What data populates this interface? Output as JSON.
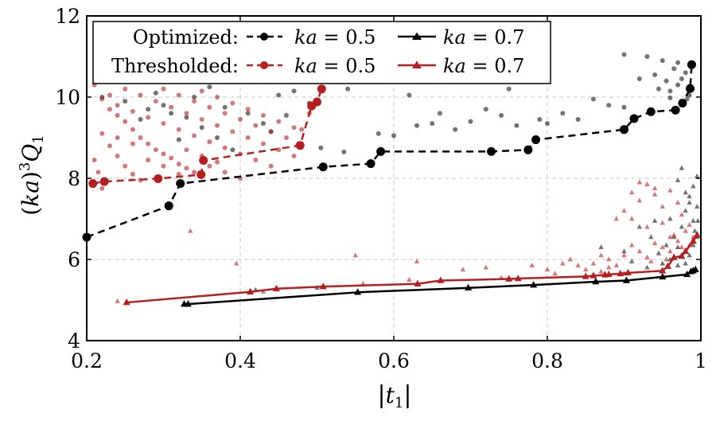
{
  "chart_data": {
    "type": "scatter",
    "xlabel": "|t1|",
    "ylabel": "(ka)3Q1",
    "xlim": [
      0.2,
      1.0
    ],
    "ylim": [
      4,
      12
    ],
    "xticks": [
      "0.2",
      "0.4",
      "0.6",
      "0.8",
      "1"
    ],
    "yticks": [
      "4",
      "6",
      "8",
      "10",
      "12"
    ],
    "grid": true,
    "legend": {
      "placement": "top-left",
      "rows": [
        {
          "label": "Optimized:",
          "entries": [
            "ka = 0.5",
            "ka = 0.7"
          ]
        },
        {
          "label": "Thresholded:",
          "entries": [
            "ka = 0.5",
            "ka = 0.7"
          ]
        }
      ]
    },
    "colors": {
      "optimized": "#000000",
      "thresholded": "#b41f1f"
    },
    "series": [
      {
        "name": "Optimized: ka = 0.5",
        "style": "dashed-line-circle",
        "color": "#000000",
        "front": [
          [
            0.2,
            6.55
          ],
          [
            0.307,
            7.32
          ],
          [
            0.322,
            7.87
          ],
          [
            0.508,
            8.28
          ],
          [
            0.57,
            8.36
          ],
          [
            0.583,
            8.66
          ],
          [
            0.727,
            8.66
          ],
          [
            0.775,
            8.7
          ],
          [
            0.785,
            8.95
          ],
          [
            0.9,
            9.2
          ],
          [
            0.913,
            9.47
          ],
          [
            0.935,
            9.64
          ],
          [
            0.967,
            9.68
          ],
          [
            0.976,
            9.85
          ],
          [
            0.986,
            10.21
          ],
          [
            0.988,
            10.8
          ]
        ],
        "scatter": [
          [
            0.36,
            10.25
          ],
          [
            0.34,
            10.0
          ],
          [
            0.3,
            9.8
          ],
          [
            0.28,
            9.7
          ],
          [
            0.45,
            10.05
          ],
          [
            0.47,
            10.15
          ],
          [
            0.38,
            9.75
          ],
          [
            0.33,
            9.5
          ],
          [
            0.27,
            9.45
          ],
          [
            0.43,
            9.35
          ],
          [
            0.49,
            9.85
          ],
          [
            0.37,
            9.0
          ],
          [
            0.31,
            9.6
          ],
          [
            0.22,
            10.0
          ],
          [
            0.25,
            9.9
          ],
          [
            0.41,
            9.6
          ],
          [
            0.29,
            10.1
          ],
          [
            0.35,
            9.25
          ],
          [
            0.32,
            8.95
          ],
          [
            0.46,
            9.55
          ],
          [
            0.44,
            9.15
          ],
          [
            0.39,
            8.7
          ],
          [
            0.505,
            8.75
          ],
          [
            0.535,
            8.65
          ],
          [
            0.6,
            9.05
          ],
          [
            0.54,
            10.2
          ],
          [
            0.68,
            9.2
          ],
          [
            0.65,
            9.35
          ],
          [
            0.62,
            10.05
          ],
          [
            0.66,
            9.6
          ],
          [
            0.7,
            9.4
          ],
          [
            0.72,
            9.7
          ],
          [
            0.74,
            9.55
          ],
          [
            0.76,
            9.3
          ],
          [
            0.79,
            9.45
          ],
          [
            0.82,
            9.6
          ],
          [
            0.84,
            9.45
          ],
          [
            0.86,
            9.95
          ],
          [
            0.88,
            9.8
          ],
          [
            0.9,
            9.75
          ],
          [
            0.92,
            10.45
          ],
          [
            0.94,
            10.55
          ],
          [
            0.955,
            10.4
          ],
          [
            0.96,
            10.15
          ],
          [
            0.965,
            10.7
          ],
          [
            0.97,
            10.3
          ],
          [
            0.975,
            10.45
          ],
          [
            0.98,
            10.6
          ],
          [
            0.982,
            9.95
          ],
          [
            0.985,
            10.05
          ],
          [
            0.9,
            11.05
          ],
          [
            0.93,
            11.0
          ],
          [
            0.95,
            10.9
          ],
          [
            0.97,
            10.85
          ],
          [
            0.96,
            9.98
          ],
          [
            0.945,
            10.2
          ],
          [
            0.22,
            11.15
          ],
          [
            0.75,
            10.2
          ],
          [
            0.8,
            9.35
          ],
          [
            0.58,
            9.1
          ],
          [
            0.63,
            9.3
          ]
        ]
      },
      {
        "name": "Optimized: ka = 0.7",
        "style": "solid-line-triangle",
        "color": "#000000",
        "front": [
          [
            0.327,
            4.9
          ],
          [
            0.332,
            4.9
          ],
          [
            0.553,
            5.19
          ],
          [
            0.697,
            5.3
          ],
          [
            0.782,
            5.37
          ],
          [
            0.863,
            5.45
          ],
          [
            0.903,
            5.48
          ],
          [
            0.95,
            5.57
          ],
          [
            0.982,
            5.63
          ],
          [
            0.987,
            5.7
          ],
          [
            0.99,
            5.72
          ],
          [
            0.993,
            5.75
          ]
        ],
        "scatter": [
          [
            0.42,
            5.25
          ],
          [
            0.5,
            5.3
          ],
          [
            0.85,
            5.6
          ],
          [
            0.9,
            5.65
          ],
          [
            0.93,
            5.8
          ],
          [
            0.96,
            6.0
          ],
          [
            0.97,
            6.3
          ],
          [
            0.975,
            6.8
          ],
          [
            0.98,
            7.2
          ],
          [
            0.985,
            7.55
          ],
          [
            0.99,
            7.8
          ],
          [
            0.995,
            8.05
          ],
          [
            0.97,
            7.95
          ],
          [
            0.975,
            8.25
          ],
          [
            0.98,
            7.65
          ],
          [
            0.985,
            7.4
          ],
          [
            0.99,
            6.95
          ],
          [
            0.995,
            6.55
          ],
          [
            0.965,
            6.55
          ],
          [
            0.96,
            7.0
          ],
          [
            0.955,
            6.35
          ],
          [
            0.945,
            6.15
          ],
          [
            0.985,
            6.1
          ],
          [
            0.99,
            6.35
          ],
          [
            0.992,
            6.7
          ],
          [
            0.996,
            6.95
          ],
          [
            0.97,
            5.85
          ],
          [
            0.98,
            5.9
          ],
          [
            0.92,
            6.8
          ],
          [
            0.94,
            6.95
          ],
          [
            0.935,
            6.55
          ],
          [
            0.87,
            6.3
          ],
          [
            0.9,
            6.2
          ],
          [
            0.91,
            5.95
          ],
          [
            0.95,
            5.9
          ],
          [
            0.995,
            7.3
          ]
        ]
      },
      {
        "name": "Thresholded: ka = 0.5",
        "style": "dashed-line-circle",
        "color": "#b41f1f",
        "front": [
          [
            0.208,
            7.87
          ],
          [
            0.223,
            7.92
          ],
          [
            0.293,
            7.99
          ],
          [
            0.349,
            8.09
          ],
          [
            0.352,
            8.44
          ],
          [
            0.478,
            8.81
          ],
          [
            0.493,
            9.78
          ],
          [
            0.5,
            9.88
          ],
          [
            0.506,
            10.2
          ]
        ],
        "scatter": [
          [
            0.21,
            10.3
          ],
          [
            0.22,
            9.95
          ],
          [
            0.23,
            9.7
          ],
          [
            0.24,
            9.55
          ],
          [
            0.25,
            9.4
          ],
          [
            0.26,
            9.2
          ],
          [
            0.27,
            9.0
          ],
          [
            0.28,
            8.85
          ],
          [
            0.29,
            8.7
          ],
          [
            0.3,
            8.6
          ],
          [
            0.31,
            8.5
          ],
          [
            0.32,
            8.35
          ],
          [
            0.33,
            8.25
          ],
          [
            0.34,
            8.15
          ],
          [
            0.22,
            9.1
          ],
          [
            0.23,
            8.8
          ],
          [
            0.24,
            8.55
          ],
          [
            0.25,
            8.3
          ],
          [
            0.26,
            8.1
          ],
          [
            0.27,
            7.95
          ],
          [
            0.21,
            8.45
          ],
          [
            0.215,
            8.15
          ],
          [
            0.22,
            7.75
          ],
          [
            0.24,
            9.8
          ],
          [
            0.26,
            9.65
          ],
          [
            0.28,
            9.5
          ],
          [
            0.3,
            9.35
          ],
          [
            0.32,
            9.2
          ],
          [
            0.34,
            9.05
          ],
          [
            0.36,
            8.9
          ],
          [
            0.38,
            8.75
          ],
          [
            0.4,
            8.6
          ],
          [
            0.42,
            8.45
          ],
          [
            0.44,
            8.3
          ],
          [
            0.27,
            10.05
          ],
          [
            0.29,
            9.9
          ],
          [
            0.31,
            9.75
          ],
          [
            0.33,
            9.6
          ],
          [
            0.35,
            9.45
          ],
          [
            0.37,
            9.3
          ],
          [
            0.39,
            9.15
          ],
          [
            0.41,
            9.0
          ],
          [
            0.43,
            8.85
          ],
          [
            0.45,
            8.7
          ],
          [
            0.47,
            8.55
          ],
          [
            0.3,
            10.2
          ],
          [
            0.32,
            10.05
          ],
          [
            0.34,
            9.9
          ],
          [
            0.36,
            9.75
          ],
          [
            0.38,
            9.6
          ],
          [
            0.4,
            9.45
          ],
          [
            0.42,
            9.3
          ],
          [
            0.44,
            9.15
          ],
          [
            0.46,
            9.0
          ],
          [
            0.48,
            9.2
          ],
          [
            0.35,
            10.15
          ],
          [
            0.37,
            10.0
          ],
          [
            0.39,
            9.85
          ],
          [
            0.41,
            9.7
          ],
          [
            0.43,
            9.55
          ],
          [
            0.45,
            9.4
          ],
          [
            0.47,
            9.25
          ],
          [
            0.49,
            9.6
          ],
          [
            0.25,
            10.2
          ],
          [
            0.23,
            10.05
          ],
          [
            0.26,
            8.85
          ],
          [
            0.28,
            8.45
          ],
          [
            0.3,
            8.3
          ],
          [
            0.32,
            8.1
          ],
          [
            0.36,
            8.3
          ],
          [
            0.38,
            8.15
          ],
          [
            0.4,
            8.0
          ],
          [
            0.24,
            9.0
          ],
          [
            0.33,
            8.7
          ],
          [
            0.35,
            8.55
          ],
          [
            0.37,
            8.4
          ]
        ]
      },
      {
        "name": "Thresholded: ka = 0.7",
        "style": "solid-line-triangle",
        "color": "#b41f1f",
        "front": [
          [
            0.252,
            4.94
          ],
          [
            0.413,
            5.2
          ],
          [
            0.447,
            5.28
          ],
          [
            0.508,
            5.33
          ],
          [
            0.631,
            5.4
          ],
          [
            0.661,
            5.48
          ],
          [
            0.75,
            5.52
          ],
          [
            0.762,
            5.53
          ],
          [
            0.85,
            5.58
          ],
          [
            0.86,
            5.6
          ],
          [
            0.875,
            5.62
          ],
          [
            0.88,
            5.63
          ],
          [
            0.895,
            5.65
          ],
          [
            0.905,
            5.67
          ],
          [
            0.95,
            5.72
          ],
          [
            0.957,
            5.83
          ],
          [
            0.965,
            6.05
          ],
          [
            0.975,
            6.08
          ],
          [
            0.98,
            6.2
          ],
          [
            0.99,
            6.45
          ],
          [
            0.995,
            6.6
          ]
        ],
        "scatter": [
          [
            0.24,
            4.97
          ],
          [
            0.335,
            6.7
          ],
          [
            0.395,
            5.9
          ],
          [
            0.43,
            5.2
          ],
          [
            0.55,
            6.1
          ],
          [
            0.56,
            5.4
          ],
          [
            0.62,
            5.5
          ],
          [
            0.63,
            5.95
          ],
          [
            0.69,
            5.75
          ],
          [
            0.72,
            5.8
          ],
          [
            0.74,
            5.55
          ],
          [
            0.78,
            5.85
          ],
          [
            0.8,
            5.75
          ],
          [
            0.81,
            5.65
          ],
          [
            0.82,
            5.9
          ],
          [
            0.83,
            6.0
          ],
          [
            0.84,
            5.85
          ],
          [
            0.85,
            5.75
          ],
          [
            0.86,
            5.9
          ],
          [
            0.87,
            6.1
          ],
          [
            0.88,
            6.0
          ],
          [
            0.89,
            5.85
          ],
          [
            0.9,
            6.1
          ],
          [
            0.91,
            6.35
          ],
          [
            0.92,
            6.2
          ],
          [
            0.93,
            6.05
          ],
          [
            0.94,
            6.4
          ],
          [
            0.95,
            6.3
          ],
          [
            0.96,
            6.55
          ],
          [
            0.97,
            6.45
          ],
          [
            0.98,
            6.7
          ],
          [
            0.99,
            6.55
          ],
          [
            0.9,
            7.2
          ],
          [
            0.91,
            7.65
          ],
          [
            0.92,
            7.45
          ],
          [
            0.93,
            7.85
          ],
          [
            0.94,
            7.6
          ],
          [
            0.95,
            7.3
          ],
          [
            0.96,
            7.7
          ],
          [
            0.97,
            7.4
          ],
          [
            0.92,
            7.9
          ],
          [
            0.94,
            7.75
          ],
          [
            0.89,
            7.0
          ],
          [
            0.91,
            7.0
          ],
          [
            0.93,
            6.8
          ],
          [
            0.95,
            6.9
          ],
          [
            0.965,
            6.6
          ],
          [
            0.975,
            6.3
          ],
          [
            0.87,
            5.7
          ],
          [
            0.88,
            5.8
          ],
          [
            0.96,
            6.2
          ],
          [
            0.935,
            5.95
          ],
          [
            0.955,
            6.0
          ],
          [
            0.985,
            6.35
          ],
          [
            0.985,
            6.85
          ],
          [
            0.975,
            7.1
          ]
        ]
      }
    ]
  }
}
